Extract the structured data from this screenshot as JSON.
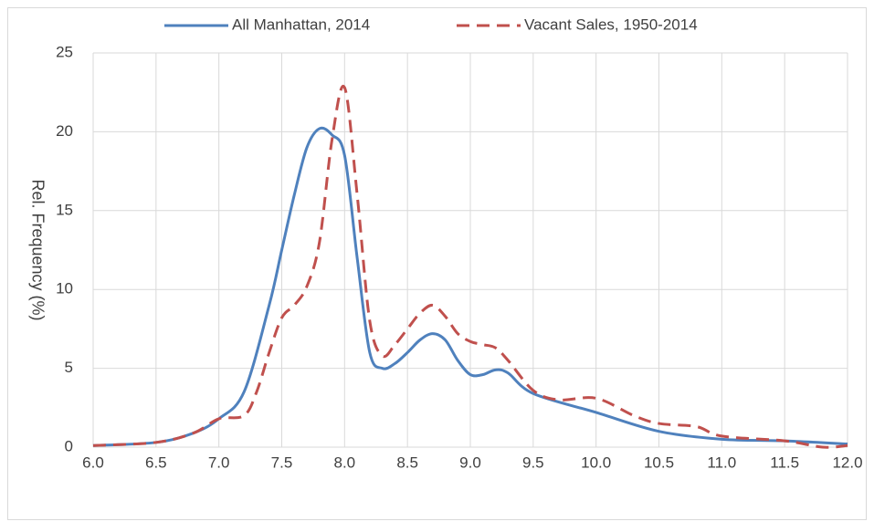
{
  "chart_data": {
    "type": "line",
    "y_label": "Rel. Frequency (%)",
    "xlim": [
      6,
      12
    ],
    "ylim": [
      0,
      25
    ],
    "xticks": [
      {
        "value": 6,
        "label": "6.0"
      },
      {
        "value": 6.5,
        "label": "6.5"
      },
      {
        "value": 7,
        "label": "7.0"
      },
      {
        "value": 7.5,
        "label": "7.5"
      },
      {
        "value": 8,
        "label": "8.0"
      },
      {
        "value": 8.5,
        "label": "8.5"
      },
      {
        "value": 9,
        "label": "9.0"
      },
      {
        "value": 9.5,
        "label": "9.5"
      },
      {
        "value": 10,
        "label": "10.0"
      },
      {
        "value": 10.5,
        "label": "10.5"
      },
      {
        "value": 11,
        "label": "11.0"
      },
      {
        "value": 11.5,
        "label": "11.5"
      },
      {
        "value": 12,
        "label": "12.0"
      }
    ],
    "yticks": [
      0,
      5,
      10,
      15,
      20,
      25
    ],
    "grid": true,
    "legend": "top",
    "series": [
      {
        "name": "All Manhattan, 2014",
        "color": "#4f81bd",
        "dash": false,
        "x": [
          6.0,
          6.5,
          6.8,
          7.0,
          7.2,
          7.4,
          7.5,
          7.6,
          7.7,
          7.8,
          7.9,
          8.0,
          8.1,
          8.2,
          8.3,
          8.4,
          8.5,
          8.6,
          8.7,
          8.8,
          8.9,
          9.0,
          9.1,
          9.2,
          9.3,
          9.5,
          10.0,
          10.5,
          11.0,
          11.5,
          12.0
        ],
        "values": [
          0.1,
          0.3,
          0.9,
          1.8,
          3.5,
          9,
          12.5,
          16,
          19,
          20.2,
          19.8,
          18.5,
          12,
          6,
          5.0,
          5.3,
          6.0,
          6.8,
          7.2,
          6.8,
          5.5,
          4.6,
          4.6,
          4.9,
          4.7,
          3.4,
          2.2,
          1.0,
          0.5,
          0.4,
          0.2
        ]
      },
      {
        "name": "Vacant Sales, 1950-2014",
        "color": "#c0504d",
        "dash": true,
        "x": [
          6.0,
          6.5,
          6.8,
          7.0,
          7.2,
          7.3,
          7.4,
          7.5,
          7.6,
          7.7,
          7.8,
          7.9,
          8.0,
          8.1,
          8.2,
          8.3,
          8.4,
          8.5,
          8.6,
          8.7,
          8.8,
          8.9,
          9.0,
          9.1,
          9.2,
          9.3,
          9.5,
          9.7,
          10.0,
          10.3,
          10.5,
          10.8,
          11.0,
          11.5,
          11.8,
          12.0
        ],
        "values": [
          0.1,
          0.3,
          0.9,
          1.8,
          2.0,
          3.5,
          6,
          8.2,
          9,
          10.2,
          13,
          19.5,
          22.8,
          16,
          8,
          5.8,
          6.5,
          7.5,
          8.5,
          9.0,
          8.3,
          7.2,
          6.7,
          6.5,
          6.3,
          5.5,
          3.6,
          3.0,
          3.1,
          2.0,
          1.5,
          1.3,
          0.7,
          0.4,
          0.0,
          0.1
        ]
      }
    ]
  }
}
